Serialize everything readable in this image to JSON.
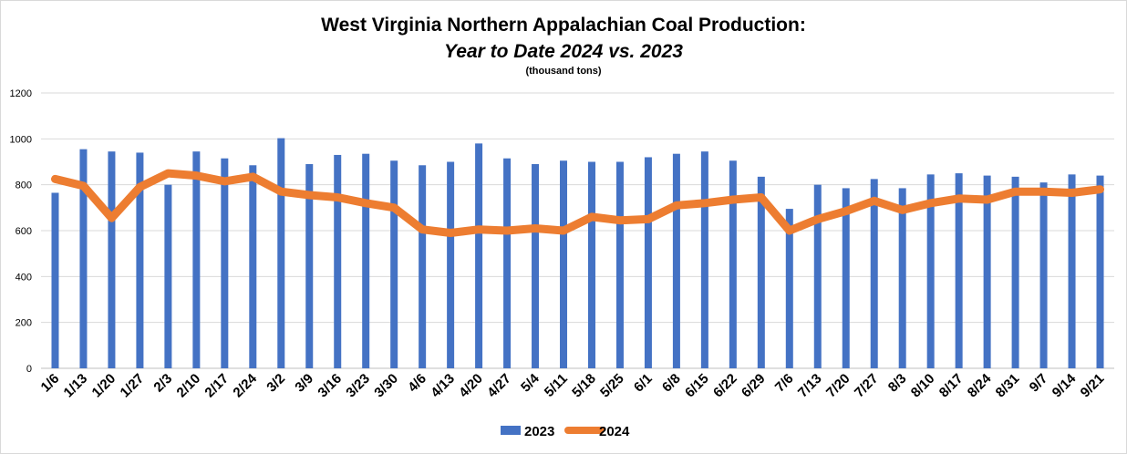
{
  "chart_data": {
    "type": "bar",
    "title": "West Virginia Northern Appalachian Coal Production:",
    "subtitle": "Year to Date 2024 vs. 2023",
    "units_note": "(thousand tons)",
    "xlabel": "",
    "ylabel": "",
    "ylim": [
      0,
      1200
    ],
    "yticks": [
      0,
      200,
      400,
      600,
      800,
      1000,
      1200
    ],
    "grid": true,
    "legend_position": "bottom",
    "categories": [
      "1/6",
      "1/13",
      "1/20",
      "1/27",
      "2/3",
      "2/10",
      "2/17",
      "2/24",
      "3/2",
      "3/9",
      "3/16",
      "3/23",
      "3/30",
      "4/6",
      "4/13",
      "4/20",
      "4/27",
      "5/4",
      "5/11",
      "5/18",
      "5/25",
      "6/1",
      "6/8",
      "6/15",
      "6/22",
      "6/29",
      "7/6",
      "7/13",
      "7/20",
      "7/27",
      "8/3",
      "8/10",
      "8/17",
      "8/24",
      "8/31",
      "9/7",
      "9/14",
      "9/21"
    ],
    "series": [
      {
        "name": "2023",
        "type": "bar",
        "color": "#4472c4",
        "values": [
          765,
          955,
          945,
          940,
          800,
          945,
          915,
          885,
          1003,
          890,
          930,
          935,
          905,
          885,
          900,
          980,
          915,
          890,
          905,
          900,
          900,
          920,
          935,
          945,
          905,
          835,
          695,
          800,
          785,
          825,
          785,
          845,
          850,
          840,
          835,
          810,
          845,
          840
        ]
      },
      {
        "name": "2024",
        "type": "line",
        "color": "#ed7d31",
        "values": [
          825,
          795,
          655,
          790,
          850,
          840,
          815,
          835,
          770,
          755,
          745,
          720,
          700,
          605,
          590,
          605,
          600,
          610,
          600,
          660,
          645,
          650,
          710,
          720,
          735,
          745,
          600,
          650,
          685,
          730,
          690,
          720,
          740,
          735,
          770,
          770,
          765,
          780
        ]
      }
    ]
  }
}
